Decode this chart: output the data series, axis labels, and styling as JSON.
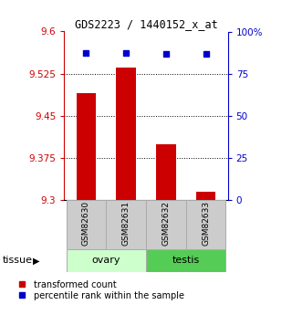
{
  "title": "GDS2223 / 1440152_x_at",
  "samples": [
    "GSM82630",
    "GSM82631",
    "GSM82632",
    "GSM82633"
  ],
  "red_values": [
    9.49,
    9.535,
    9.4,
    9.315
  ],
  "blue_values": [
    87.5,
    87.5,
    86.5,
    86.5
  ],
  "ylim_left": [
    9.3,
    9.6
  ],
  "ylim_right": [
    0,
    100
  ],
  "yticks_left": [
    9.3,
    9.375,
    9.45,
    9.525,
    9.6
  ],
  "yticks_right": [
    0,
    25,
    50,
    75,
    100
  ],
  "ytick_labels_left": [
    "9.3",
    "9.375",
    "9.45",
    "9.525",
    "9.6"
  ],
  "ytick_labels_right": [
    "0",
    "25",
    "50",
    "75",
    "100%"
  ],
  "grid_lines": [
    9.375,
    9.45,
    9.525
  ],
  "bar_color": "#cc0000",
  "dot_color": "#0000cc",
  "bar_width": 0.5,
  "tissue_groups": [
    {
      "label": "ovary",
      "samples": [
        0,
        1
      ],
      "color": "#ccffcc"
    },
    {
      "label": "testis",
      "samples": [
        2,
        3
      ],
      "color": "#55cc55"
    }
  ],
  "legend_items": [
    {
      "label": "transformed count",
      "color": "#cc0000"
    },
    {
      "label": "percentile rank within the sample",
      "color": "#0000cc"
    }
  ],
  "xlabel_tissue": "tissue",
  "axis_left_color": "#cc0000",
  "axis_right_color": "#0000cc"
}
